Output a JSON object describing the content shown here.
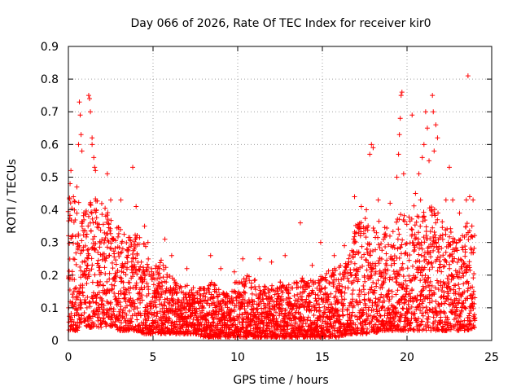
{
  "chart_data": {
    "type": "scatter",
    "title": "Day 066 of 2026, Rate Of TEC Index for receiver kir0",
    "xlabel": "GPS time / hours",
    "ylabel": "ROTI / TECUs",
    "xlim": [
      0,
      25
    ],
    "ylim": [
      0,
      0.9
    ],
    "x_ticks": [
      "0",
      "5",
      "10",
      "15",
      "20",
      "25"
    ],
    "x_tick_values": [
      0,
      5,
      10,
      15,
      20,
      25
    ],
    "y_ticks": [
      "0",
      "0.1",
      "0.2",
      "0.3",
      "0.4",
      "0.5",
      "0.6",
      "0.7",
      "0.8",
      "0.9"
    ],
    "y_tick_values": [
      0,
      0.1,
      0.2,
      0.3,
      0.4,
      0.5,
      0.6,
      0.7,
      0.8,
      0.9
    ],
    "grid": true,
    "marker": "+",
    "series": [
      {
        "name": "ROTI",
        "color": "#ff0000",
        "points": [
          [
            0.1,
            0.48
          ],
          [
            0.15,
            0.52
          ],
          [
            0.3,
            0.44
          ],
          [
            0.5,
            0.47
          ],
          [
            0.6,
            0.6
          ],
          [
            0.65,
            0.73
          ],
          [
            0.7,
            0.69
          ],
          [
            0.75,
            0.63
          ],
          [
            0.8,
            0.58
          ],
          [
            1.2,
            0.75
          ],
          [
            1.25,
            0.74
          ],
          [
            1.3,
            0.7
          ],
          [
            1.4,
            0.6
          ],
          [
            1.5,
            0.56
          ],
          [
            1.55,
            0.53
          ],
          [
            1.6,
            0.52
          ],
          [
            1.4,
            0.62
          ],
          [
            2.3,
            0.51
          ],
          [
            2.5,
            0.43
          ],
          [
            3.1,
            0.43
          ],
          [
            3.8,
            0.53
          ],
          [
            4.0,
            0.41
          ],
          [
            4.5,
            0.35
          ],
          [
            4.7,
            0.3
          ],
          [
            5.7,
            0.31
          ],
          [
            6.1,
            0.26
          ],
          [
            7.0,
            0.22
          ],
          [
            8.4,
            0.26
          ],
          [
            9.0,
            0.22
          ],
          [
            9.8,
            0.21
          ],
          [
            10.3,
            0.25
          ],
          [
            11.3,
            0.25
          ],
          [
            12.0,
            0.24
          ],
          [
            12.8,
            0.26
          ],
          [
            13.7,
            0.36
          ],
          [
            14.4,
            0.23
          ],
          [
            14.9,
            0.3
          ],
          [
            15.7,
            0.26
          ],
          [
            16.3,
            0.29
          ],
          [
            16.9,
            0.44
          ],
          [
            17.3,
            0.41
          ],
          [
            17.6,
            0.4
          ],
          [
            17.8,
            0.57
          ],
          [
            17.9,
            0.6
          ],
          [
            18.0,
            0.59
          ],
          [
            18.3,
            0.43
          ],
          [
            19.0,
            0.42
          ],
          [
            19.4,
            0.5
          ],
          [
            19.5,
            0.57
          ],
          [
            19.55,
            0.63
          ],
          [
            19.6,
            0.68
          ],
          [
            19.65,
            0.75
          ],
          [
            19.7,
            0.76
          ],
          [
            19.8,
            0.51
          ],
          [
            20.3,
            0.69
          ],
          [
            20.5,
            0.45
          ],
          [
            20.7,
            0.51
          ],
          [
            20.8,
            0.43
          ],
          [
            20.9,
            0.56
          ],
          [
            21.0,
            0.6
          ],
          [
            21.1,
            0.7
          ],
          [
            21.2,
            0.65
          ],
          [
            21.3,
            0.55
          ],
          [
            21.5,
            0.75
          ],
          [
            21.55,
            0.7
          ],
          [
            21.6,
            0.58
          ],
          [
            21.7,
            0.66
          ],
          [
            21.8,
            0.62
          ],
          [
            22.3,
            0.43
          ],
          [
            22.5,
            0.53
          ],
          [
            22.7,
            0.43
          ],
          [
            23.1,
            0.39
          ],
          [
            23.5,
            0.43
          ],
          [
            23.6,
            0.81
          ],
          [
            23.7,
            0.44
          ],
          [
            23.9,
            0.43
          ]
        ],
        "envelope": {
          "hours": [
            0,
            0.5,
            1,
            1.5,
            2,
            2.5,
            3,
            3.5,
            4,
            4.5,
            5,
            5.5,
            6,
            6.5,
            7,
            7.5,
            8,
            8.5,
            9,
            9.5,
            10,
            10.5,
            11,
            11.5,
            12,
            12.5,
            13,
            13.5,
            14,
            14.5,
            15,
            15.5,
            16,
            16.5,
            17,
            17.5,
            18,
            18.5,
            19,
            19.5,
            20,
            20.5,
            21,
            21.5,
            22,
            22.5,
            23,
            23.5,
            24
          ],
          "max": [
            0.45,
            0.44,
            0.4,
            0.45,
            0.42,
            0.38,
            0.35,
            0.33,
            0.34,
            0.3,
            0.22,
            0.25,
            0.2,
            0.17,
            0.17,
            0.16,
            0.17,
            0.18,
            0.15,
            0.15,
            0.19,
            0.2,
            0.19,
            0.17,
            0.17,
            0.18,
            0.17,
            0.18,
            0.2,
            0.18,
            0.2,
            0.22,
            0.23,
            0.25,
            0.36,
            0.38,
            0.35,
            0.38,
            0.33,
            0.4,
            0.38,
            0.42,
            0.4,
            0.42,
            0.38,
            0.35,
            0.3,
            0.36,
            0.35
          ],
          "min": [
            0.03,
            0.03,
            0.04,
            0.04,
            0.04,
            0.04,
            0.03,
            0.03,
            0.03,
            0.02,
            0.02,
            0.02,
            0.02,
            0.02,
            0.02,
            0.02,
            0.01,
            0.01,
            0.01,
            0.01,
            0.01,
            0.01,
            0.01,
            0.01,
            0.01,
            0.01,
            0.01,
            0.01,
            0.01,
            0.01,
            0.01,
            0.01,
            0.01,
            0.02,
            0.02,
            0.02,
            0.02,
            0.03,
            0.03,
            0.03,
            0.03,
            0.03,
            0.03,
            0.03,
            0.03,
            0.03,
            0.03,
            0.03,
            0.04
          ]
        },
        "sample_interval_hours": 0.025,
        "samples_per_interval": 4
      }
    ]
  }
}
